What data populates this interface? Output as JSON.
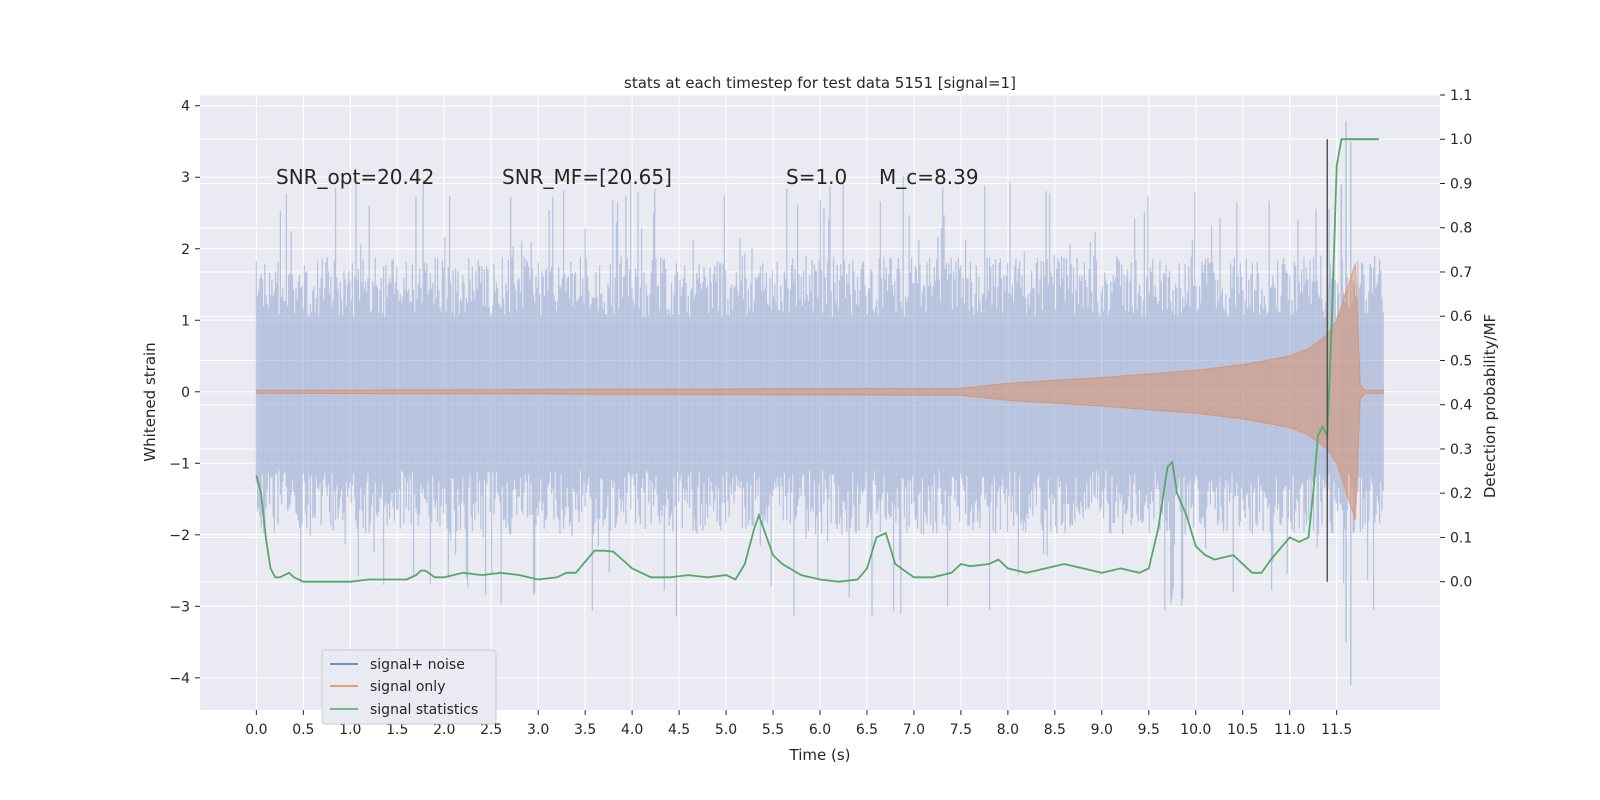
{
  "chart_data": {
    "type": "line",
    "title": "stats at each timestep for test data 5151 [signal=1]",
    "xlabel": "Time (s)",
    "ylabel": "Whitened strain",
    "ylabel_right": "Detection probability/MF",
    "xlim": [
      -0.6,
      12.6
    ],
    "ylim": [
      -4.45,
      4.15
    ],
    "ylim_right": [
      -0.29,
      1.1
    ],
    "x_ticks": [
      "0.0",
      "0.5",
      "1.0",
      "1.5",
      "2.0",
      "2.5",
      "3.0",
      "3.5",
      "4.0",
      "4.5",
      "5.0",
      "5.5",
      "6.0",
      "6.5",
      "7.0",
      "7.5",
      "8.0",
      "8.5",
      "9.0",
      "9.5",
      "10.0",
      "10.5",
      "11.0",
      "11.5"
    ],
    "y_ticks": [
      "−4",
      "−3",
      "−2",
      "−1",
      "0",
      "1",
      "2",
      "3",
      "4"
    ],
    "y_ticks_right": [
      "0.0",
      "0.1",
      "0.2",
      "0.3",
      "0.4",
      "0.5",
      "0.6",
      "0.7",
      "0.8",
      "0.9",
      "1.0",
      "1.1"
    ],
    "grid": true,
    "legend_position": "lower-left",
    "annotations": {
      "snr_opt": "SNR_opt=20.42",
      "snr_mf": "SNR_MF=[20.65]",
      "s": "S=1.0",
      "mc": "M_c=8.39"
    },
    "vline_x": 11.4,
    "noise_envelope": {
      "x": [
        0.0,
        12.0
      ],
      "upper_typical": 1.9,
      "lower_typical": -2.0,
      "peak_max": 3.78,
      "peak_min": -4.1,
      "color": "#8fa4cf"
    },
    "signal_envelope": {
      "x": [
        0.0,
        7.5,
        8.0,
        8.5,
        9.0,
        9.5,
        10.0,
        10.5,
        11.0,
        11.2,
        11.4,
        11.5,
        11.6,
        11.7,
        11.75,
        11.8,
        12.0
      ],
      "amp": [
        0.02,
        0.05,
        0.12,
        0.16,
        0.2,
        0.25,
        0.3,
        0.38,
        0.5,
        0.6,
        0.8,
        1.0,
        1.4,
        1.8,
        0.1,
        0.02,
        0.02
      ],
      "color": "#dd8452"
    },
    "series": [
      {
        "name": "signal+ noise",
        "color": "#4c72b0",
        "axis": "left"
      },
      {
        "name": "signal only",
        "color": "#dd8452",
        "axis": "left"
      },
      {
        "name": "signal statistics",
        "color": "#55a868",
        "axis": "right",
        "x": [
          0.0,
          0.05,
          0.1,
          0.15,
          0.2,
          0.25,
          0.3,
          0.35,
          0.4,
          0.5,
          0.6,
          0.8,
          1.0,
          1.2,
          1.4,
          1.6,
          1.7,
          1.75,
          1.8,
          1.9,
          2.0,
          2.2,
          2.4,
          2.6,
          2.8,
          3.0,
          3.2,
          3.3,
          3.4,
          3.6,
          3.7,
          3.8,
          4.0,
          4.1,
          4.2,
          4.4,
          4.6,
          4.8,
          5.0,
          5.1,
          5.2,
          5.3,
          5.35,
          5.4,
          5.5,
          5.6,
          5.8,
          6.0,
          6.2,
          6.4,
          6.5,
          6.6,
          6.7,
          6.8,
          7.0,
          7.2,
          7.4,
          7.5,
          7.6,
          7.8,
          7.9,
          8.0,
          8.2,
          8.4,
          8.6,
          8.8,
          9.0,
          9.2,
          9.4,
          9.5,
          9.6,
          9.7,
          9.75,
          9.8,
          9.9,
          10.0,
          10.1,
          10.2,
          10.4,
          10.6,
          10.7,
          10.8,
          11.0,
          11.1,
          11.2,
          11.25,
          11.3,
          11.35,
          11.4,
          11.45,
          11.5,
          11.55,
          11.6,
          11.7,
          11.8,
          11.9,
          11.95
        ],
        "values": [
          0.24,
          0.2,
          0.1,
          0.03,
          0.01,
          0.01,
          0.015,
          0.02,
          0.01,
          0.0,
          0.0,
          0.0,
          0.0,
          0.005,
          0.005,
          0.005,
          0.015,
          0.025,
          0.025,
          0.01,
          0.01,
          0.02,
          0.015,
          0.02,
          0.015,
          0.005,
          0.01,
          0.02,
          0.02,
          0.07,
          0.07,
          0.068,
          0.03,
          0.02,
          0.01,
          0.01,
          0.015,
          0.01,
          0.015,
          0.005,
          0.04,
          0.12,
          0.15,
          0.12,
          0.06,
          0.04,
          0.015,
          0.005,
          0.0,
          0.005,
          0.03,
          0.1,
          0.11,
          0.04,
          0.01,
          0.01,
          0.02,
          0.04,
          0.035,
          0.04,
          0.05,
          0.03,
          0.02,
          0.03,
          0.04,
          0.03,
          0.02,
          0.03,
          0.02,
          0.03,
          0.12,
          0.26,
          0.27,
          0.2,
          0.15,
          0.08,
          0.06,
          0.05,
          0.06,
          0.02,
          0.02,
          0.05,
          0.1,
          0.09,
          0.1,
          0.2,
          0.33,
          0.35,
          0.33,
          0.6,
          0.94,
          1.0,
          1.0,
          1.0,
          1.0,
          1.0,
          1.0
        ]
      }
    ]
  }
}
